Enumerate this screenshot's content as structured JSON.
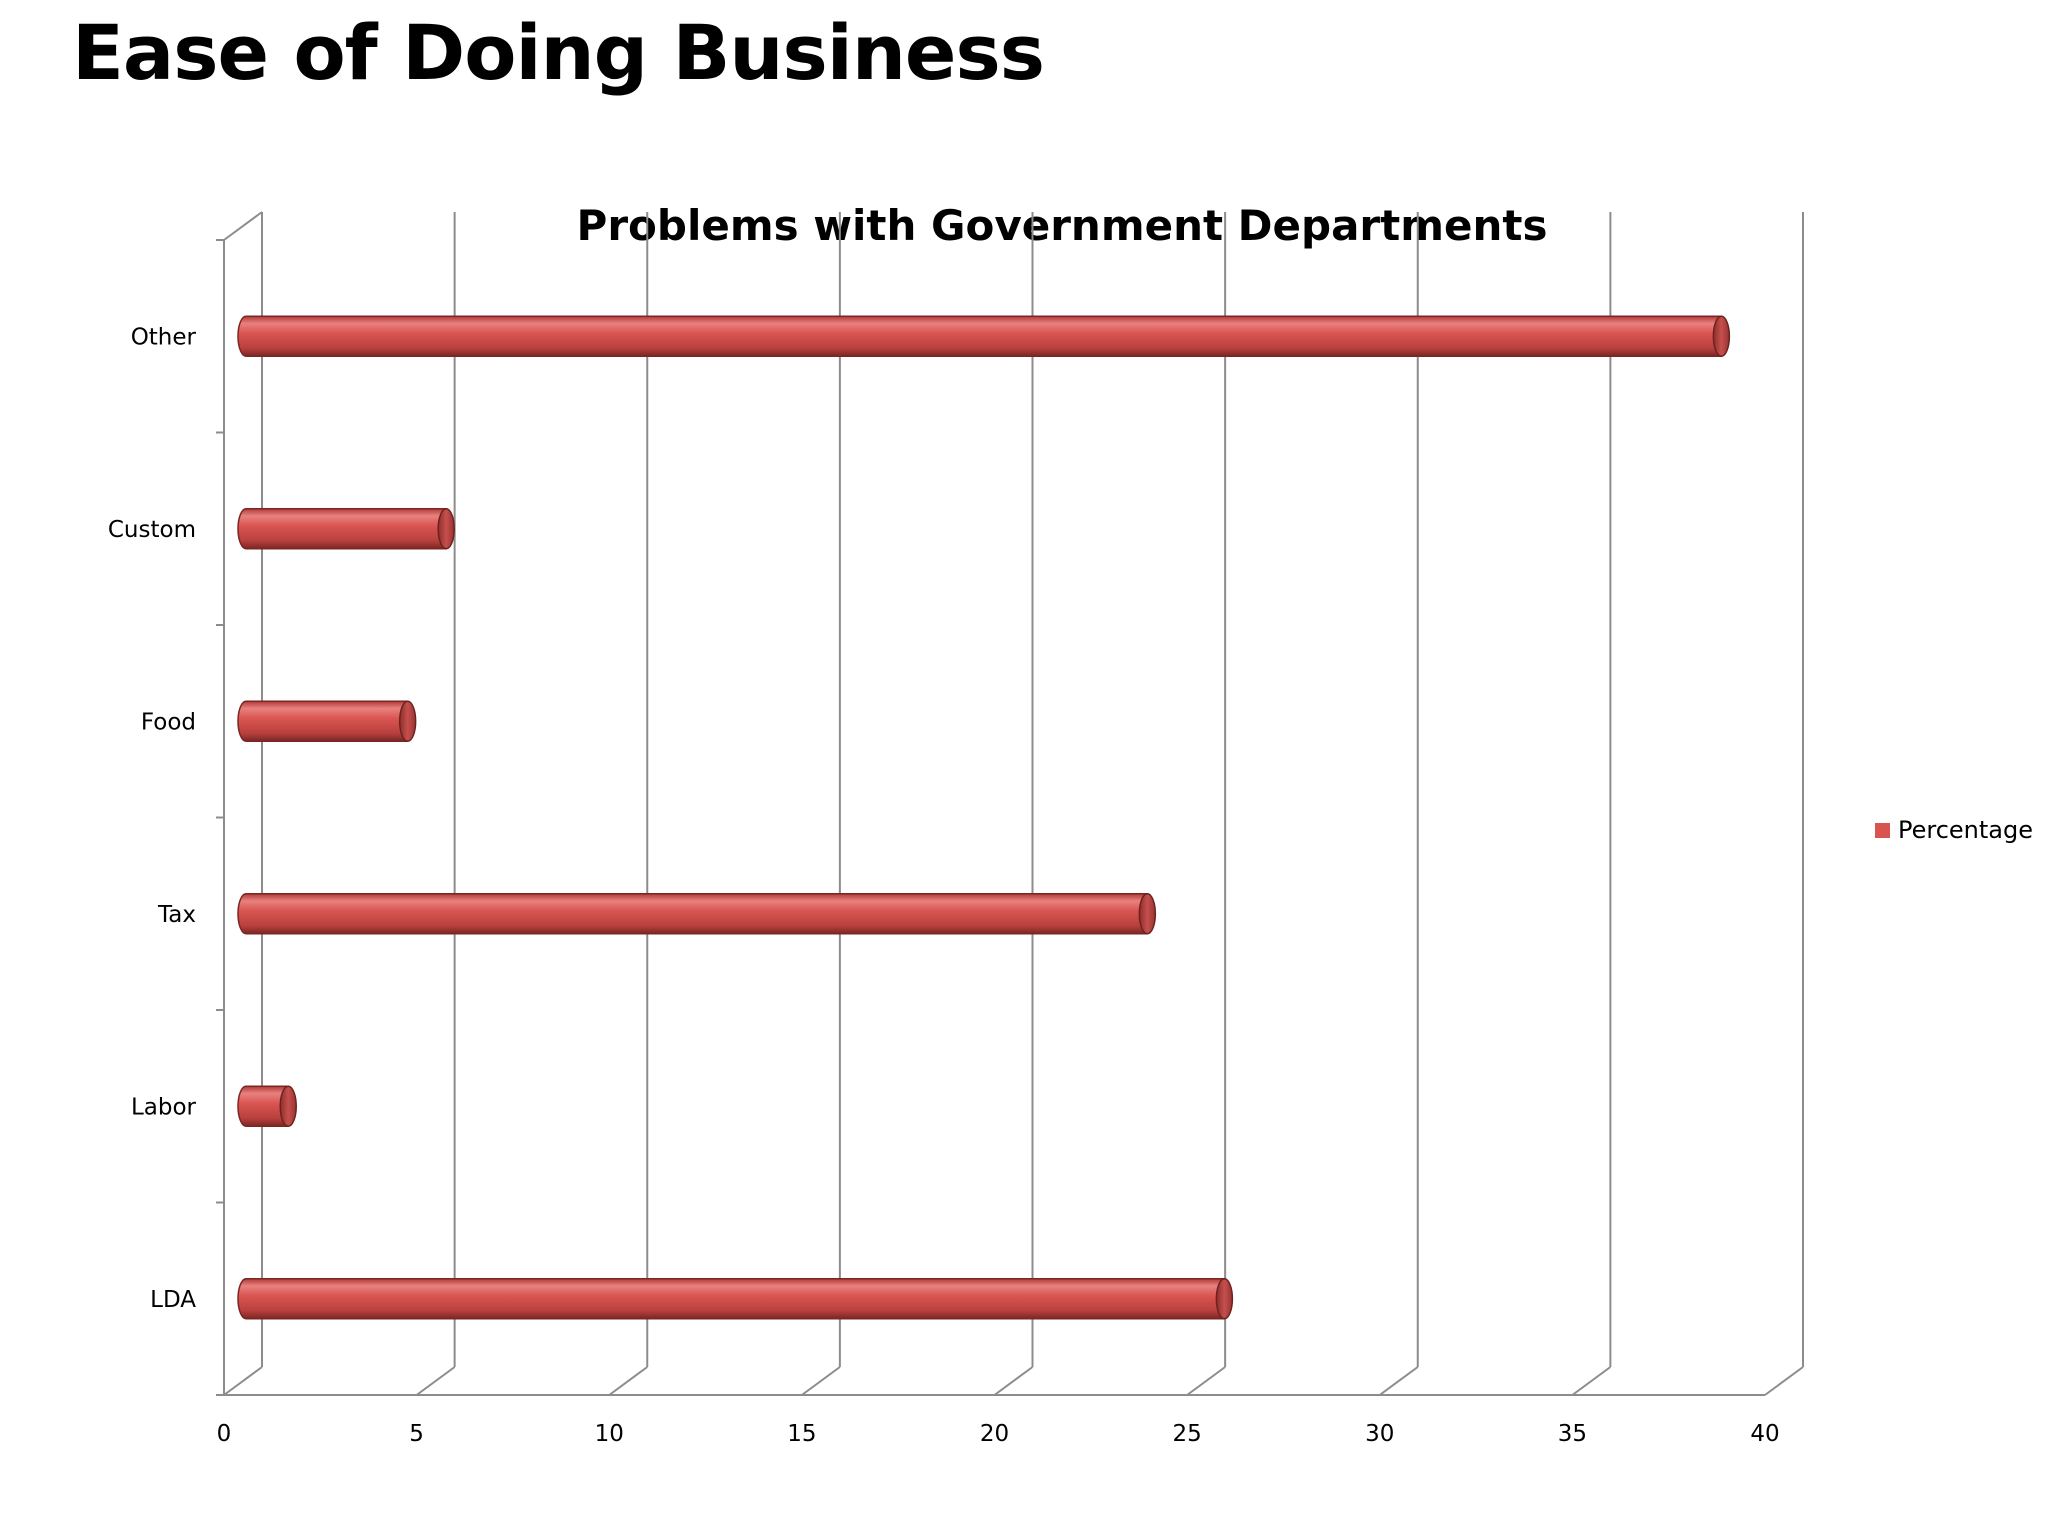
{
  "slide": {
    "title": "Ease of Doing Business"
  },
  "chart_data": {
    "type": "bar",
    "orientation": "horizontal",
    "style": "3d-cylinder",
    "title": "Problems with Government Departments",
    "xlabel": "",
    "ylabel": "",
    "categories": [
      "LDA",
      "Labor",
      "Tax",
      "Food",
      "Custom",
      "Other"
    ],
    "series": [
      {
        "name": "Percentage",
        "values": [
          25.5,
          1.2,
          23.5,
          4.3,
          5.3,
          38.4
        ],
        "color": "#d9534f"
      }
    ],
    "xlim": [
      0,
      40
    ],
    "xticks": [
      "0",
      "5",
      "10",
      "15",
      "20",
      "25",
      "30",
      "35",
      "40"
    ],
    "grid": true,
    "legend": "right"
  }
}
